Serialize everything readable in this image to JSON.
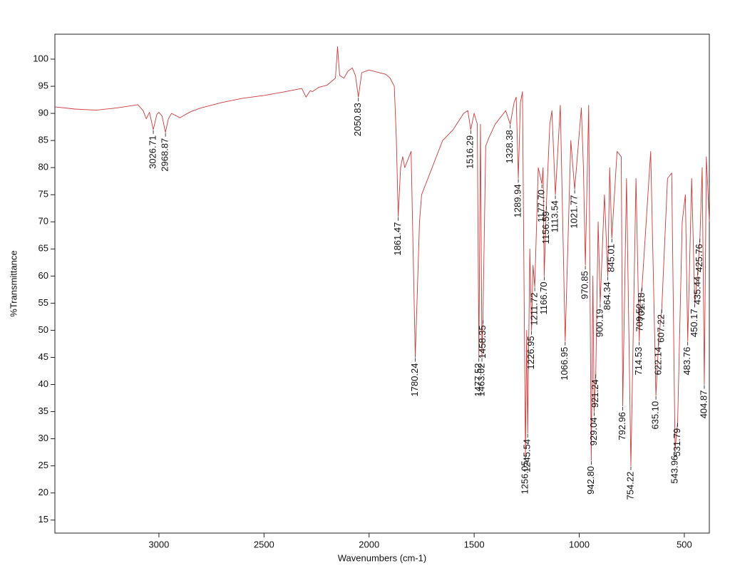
{
  "chart_data": {
    "type": "line",
    "xlabel": "Wavenumbers (cm-1)",
    "ylabel": "%Transmittance",
    "color": "#cc3a3a",
    "xlim": [
      3495,
      381
    ],
    "ylim": [
      12.6,
      104.6
    ],
    "xticks": [
      3000,
      2500,
      2000,
      1500,
      1000,
      500
    ],
    "yticks": [
      15,
      20,
      25,
      30,
      35,
      40,
      45,
      50,
      55,
      60,
      65,
      70,
      75,
      80,
      85,
      90,
      95,
      100
    ],
    "x": [
      3495,
      3400,
      3300,
      3200,
      3100,
      3075,
      3060,
      3045,
      3026.71,
      3010,
      3000,
      2985,
      2968.87,
      2955,
      2940,
      2900,
      2850,
      2800,
      2700,
      2600,
      2500,
      2400,
      2320,
      2300,
      2280,
      2270,
      2240,
      2200,
      2160,
      2150,
      2140,
      2120,
      2100,
      2080,
      2065,
      2050.83,
      2035,
      2000,
      1960,
      1920,
      1900,
      1880,
      1870,
      1861.47,
      1850,
      1840,
      1830,
      1820,
      1800,
      1780.24,
      1760,
      1750,
      1700,
      1650,
      1600,
      1550,
      1530,
      1516.29,
      1500,
      1485,
      1477.52,
      1470,
      1463.02,
      1458.35,
      1445,
      1430,
      1400,
      1350,
      1328.38,
      1310,
      1300,
      1289.94,
      1280,
      1270,
      1256.05,
      1250,
      1245.54,
      1235,
      1226.95,
      1220,
      1211.72,
      1195,
      1177.7,
      1172,
      1166.7,
      1156.59,
      1140,
      1130,
      1113.54,
      1090,
      1066.95,
      1040,
      1021.77,
      990,
      980,
      970.85,
      955,
      942.8,
      935,
      929.04,
      921.24,
      910,
      900.19,
      880,
      864.34,
      855,
      845.01,
      820,
      800,
      792.96,
      775,
      754.22,
      730,
      714.53,
      709.52,
      701.18,
      660,
      635.1,
      622.14,
      607.22,
      580,
      560,
      543.96,
      531.79,
      510,
      495,
      483.76,
      465,
      450.17,
      435.44,
      425.76,
      415,
      404.87,
      395,
      381
    ],
    "values": [
      91.2,
      90.8,
      90.6,
      91.0,
      91.6,
      90.5,
      89.0,
      90.2,
      87.0,
      89.8,
      90.2,
      89.5,
      86.5,
      89.0,
      90.0,
      89.2,
      90.3,
      91.0,
      92.0,
      92.8,
      93.3,
      94.0,
      94.6,
      93.0,
      94.2,
      94.0,
      94.8,
      95.2,
      96.5,
      102.3,
      97.0,
      96.5,
      97.8,
      98.4,
      97.0,
      93.0,
      97.5,
      98.0,
      97.6,
      97.2,
      96.5,
      95.0,
      85.0,
      71.0,
      80.0,
      82.0,
      80.0,
      81.0,
      83.0,
      45.0,
      70.0,
      75.0,
      80.0,
      85.0,
      87.0,
      90.0,
      90.5,
      87.0,
      90.0,
      88.0,
      45.0,
      88.0,
      45.0,
      52.0,
      84.0,
      85.5,
      88.0,
      90.5,
      88.0,
      92.0,
      93.0,
      78.0,
      92.0,
      94.0,
      27.0,
      50.0,
      31.0,
      65.0,
      50.0,
      62.0,
      58.0,
      80.0,
      77.0,
      80.0,
      60.0,
      73.0,
      88.0,
      90.5,
      75.0,
      91.5,
      48.0,
      85.0,
      76.0,
      91.0,
      80.0,
      62.0,
      91.5,
      26.0,
      60.0,
      35.0,
      42.0,
      70.0,
      55.0,
      75.0,
      60.0,
      80.0,
      67.0,
      83.0,
      82.0,
      36.0,
      78.0,
      25.0,
      78.0,
      48.0,
      56.0,
      58.0,
      83.0,
      38.0,
      48.0,
      54.0,
      78.0,
      79.0,
      28.0,
      33.0,
      70.0,
      75.0,
      48.0,
      78.0,
      55.0,
      61.0,
      67.0,
      80.0,
      40.0,
      82.0,
      70.0
    ],
    "peaks": [
      {
        "x": 3026.71,
        "y": 87.0,
        "label": "3026.71"
      },
      {
        "x": 2968.87,
        "y": 86.5,
        "label": "2968.87"
      },
      {
        "x": 2050.83,
        "y": 93.0,
        "label": "2050.83"
      },
      {
        "x": 1861.47,
        "y": 71.0,
        "label": "1861.47"
      },
      {
        "x": 1780.24,
        "y": 45.0,
        "label": "1780.24"
      },
      {
        "x": 1516.29,
        "y": 87.0,
        "label": "1516.29"
      },
      {
        "x": 1477.52,
        "y": 45.0,
        "label": "1477.52"
      },
      {
        "x": 1463.02,
        "y": 45.0,
        "label": "1463.02"
      },
      {
        "x": 1458.35,
        "y": 52.0,
        "label": "1458.35"
      },
      {
        "x": 1328.38,
        "y": 88.0,
        "label": "1328.38"
      },
      {
        "x": 1289.94,
        "y": 78.0,
        "label": "1289.94"
      },
      {
        "x": 1256.05,
        "y": 27.0,
        "label": "1256.05"
      },
      {
        "x": 1245.54,
        "y": 31.0,
        "label": "1245.54"
      },
      {
        "x": 1226.95,
        "y": 50.0,
        "label": "1226.95"
      },
      {
        "x": 1211.72,
        "y": 58.0,
        "label": "1211.72"
      },
      {
        "x": 1177.7,
        "y": 77.0,
        "label": "1177.70"
      },
      {
        "x": 1166.7,
        "y": 60.0,
        "label": "1166.70"
      },
      {
        "x": 1156.59,
        "y": 73.0,
        "label": "1156.59"
      },
      {
        "x": 1113.54,
        "y": 75.0,
        "label": "1113.54"
      },
      {
        "x": 1066.95,
        "y": 48.0,
        "label": "1066.95"
      },
      {
        "x": 1021.77,
        "y": 76.0,
        "label": "1021.77"
      },
      {
        "x": 970.85,
        "y": 62.0,
        "label": "970.85"
      },
      {
        "x": 942.8,
        "y": 26.0,
        "label": "942.80"
      },
      {
        "x": 929.04,
        "y": 35.0,
        "label": "929.04"
      },
      {
        "x": 921.24,
        "y": 42.0,
        "label": "921.24"
      },
      {
        "x": 900.19,
        "y": 55.0,
        "label": "900.19"
      },
      {
        "x": 864.34,
        "y": 60.0,
        "label": "864.34"
      },
      {
        "x": 845.01,
        "y": 67.0,
        "label": "845.01"
      },
      {
        "x": 792.96,
        "y": 36.0,
        "label": "792.96"
      },
      {
        "x": 754.22,
        "y": 25.0,
        "label": "754.22"
      },
      {
        "x": 714.53,
        "y": 48.0,
        "label": "714.53"
      },
      {
        "x": 709.52,
        "y": 56.0,
        "label": "709.52"
      },
      {
        "x": 701.18,
        "y": 58.0,
        "label": "701.18"
      },
      {
        "x": 635.1,
        "y": 38.0,
        "label": "635.10"
      },
      {
        "x": 622.14,
        "y": 48.0,
        "label": "622.14"
      },
      {
        "x": 607.22,
        "y": 54.0,
        "label": "607.22"
      },
      {
        "x": 543.96,
        "y": 28.0,
        "label": "543.96"
      },
      {
        "x": 531.79,
        "y": 33.0,
        "label": "531.79"
      },
      {
        "x": 483.76,
        "y": 48.0,
        "label": "483.76"
      },
      {
        "x": 450.17,
        "y": 55.0,
        "label": "450.17"
      },
      {
        "x": 435.44,
        "y": 61.0,
        "label": "435.44"
      },
      {
        "x": 425.76,
        "y": 67.0,
        "label": "425.76"
      },
      {
        "x": 404.87,
        "y": 40.0,
        "label": "404.87"
      }
    ]
  }
}
